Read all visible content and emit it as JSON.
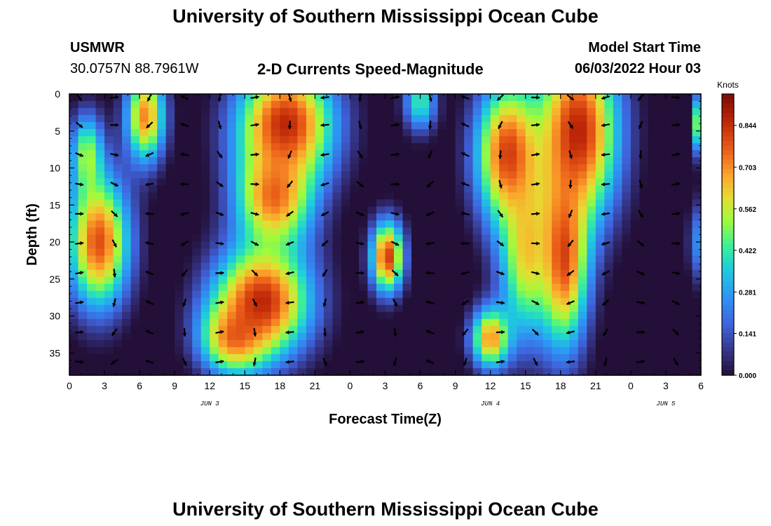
{
  "header": {
    "title": "University of Southern Mississippi Ocean Cube",
    "station": "USMWR",
    "coords": "30.0757N  88.7961W",
    "subtitle": "2-D Currents Speed-Magnitude",
    "model_start_label": "Model Start Time",
    "model_start_value": "06/03/2022 Hour 03"
  },
  "footer": {
    "title": "University of Southern Mississippi Ocean Cube"
  },
  "chart_data": {
    "type": "heatmap",
    "title": "2-D Currents Speed-Magnitude",
    "xlabel": "Forecast Time(Z)",
    "ylabel": "Depth (ft)",
    "x_hours_range": [
      0,
      54
    ],
    "ylim": [
      0,
      38
    ],
    "x_ticks": [
      {
        "h": 0,
        "label": "0"
      },
      {
        "h": 3,
        "label": "3"
      },
      {
        "h": 6,
        "label": "6"
      },
      {
        "h": 9,
        "label": "9"
      },
      {
        "h": 12,
        "label": "12"
      },
      {
        "h": 15,
        "label": "15"
      },
      {
        "h": 18,
        "label": "18"
      },
      {
        "h": 21,
        "label": "21"
      },
      {
        "h": 24,
        "label": "0"
      },
      {
        "h": 27,
        "label": "3"
      },
      {
        "h": 30,
        "label": "6"
      },
      {
        "h": 33,
        "label": "9"
      },
      {
        "h": 36,
        "label": "12"
      },
      {
        "h": 39,
        "label": "15"
      },
      {
        "h": 42,
        "label": "18"
      },
      {
        "h": 45,
        "label": "21"
      },
      {
        "h": 48,
        "label": "0"
      },
      {
        "h": 51,
        "label": "3"
      },
      {
        "h": 54,
        "label": "6"
      }
    ],
    "date_labels": [
      {
        "h": 12,
        "label": "JUN 3"
      },
      {
        "h": 36,
        "label": "JUN 4"
      },
      {
        "h": 51,
        "label": "JUN 5"
      }
    ],
    "y_ticks": [
      "0",
      "5",
      "10",
      "15",
      "20",
      "25",
      "30",
      "35"
    ],
    "colorbar": {
      "unit": "Knots",
      "min": 0.0,
      "max": 0.95,
      "labels": [
        "0.844",
        "0.703",
        "0.562",
        "0.422",
        "0.281",
        "0.141",
        "0.000"
      ]
    },
    "speed_blobs": [
      {
        "h": 2.5,
        "d": 20,
        "sh": 1.9,
        "sd": 6.5,
        "v": 0.88
      },
      {
        "h": 6.5,
        "d": 3,
        "sh": 1.2,
        "sd": 4.5,
        "v": 0.8
      },
      {
        "h": 1.5,
        "d": 8,
        "sh": 1.0,
        "sd": 4,
        "v": 0.55
      },
      {
        "h": 16.5,
        "d": 28,
        "sh": 3.0,
        "sd": 5.5,
        "v": 0.95
      },
      {
        "h": 14,
        "d": 33,
        "sh": 2.0,
        "sd": 3.5,
        "v": 0.75
      },
      {
        "h": 18.5,
        "d": 4,
        "sh": 3.0,
        "sd": 6,
        "v": 0.95
      },
      {
        "h": 17.5,
        "d": 14,
        "sh": 2.3,
        "sd": 5,
        "v": 0.8
      },
      {
        "h": 27.2,
        "d": 22,
        "sh": 1.0,
        "sd": 3.5,
        "v": 0.92
      },
      {
        "h": 30,
        "d": 1,
        "sh": 1.0,
        "sd": 3,
        "v": 0.5
      },
      {
        "h": 37.5,
        "d": 8,
        "sh": 2.0,
        "sd": 7,
        "v": 0.9
      },
      {
        "h": 43.5,
        "d": 5,
        "sh": 2.5,
        "sd": 9,
        "v": 0.96
      },
      {
        "h": 42.3,
        "d": 22,
        "sh": 1.5,
        "sd": 9,
        "v": 0.88
      },
      {
        "h": 36,
        "d": 33,
        "sh": 1.2,
        "sd": 3,
        "v": 0.78
      },
      {
        "h": 39,
        "d": 22,
        "sh": 1.6,
        "sd": 8,
        "v": 0.65
      },
      {
        "h": 53.8,
        "d": 4,
        "sh": 0.4,
        "sd": 3,
        "v": 0.6
      },
      {
        "h": 53.6,
        "d": 20,
        "sh": 0.5,
        "sd": 4,
        "v": 0.3
      }
    ],
    "speed_bias": -0.05,
    "arrow_grid": {
      "hours_start": 0,
      "hours_step": 3,
      "hours_end": 51,
      "depths": [
        0,
        4,
        8,
        12,
        16,
        20,
        24,
        28,
        32,
        36
      ]
    }
  }
}
